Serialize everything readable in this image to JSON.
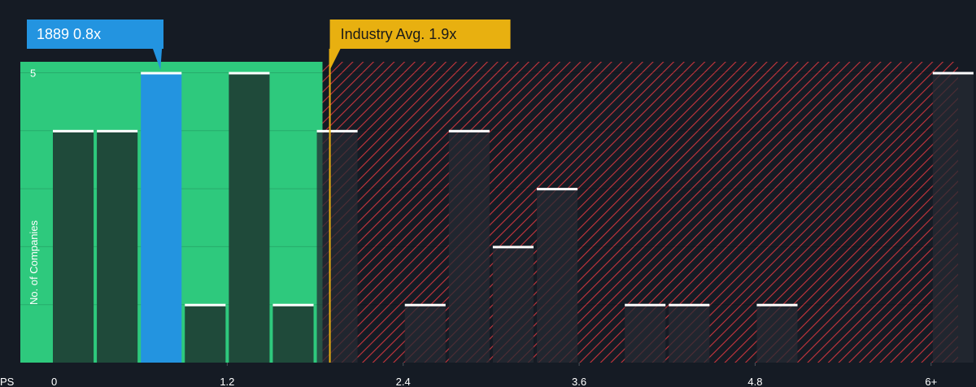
{
  "chart_data": {
    "type": "bar",
    "xlabel": "PS",
    "ylabel": "No. of Companies",
    "x_ticks": [
      "0",
      "1.2",
      "2.4",
      "3.6",
      "4.8",
      "6+"
    ],
    "y_ticks": [
      "5"
    ],
    "xlim": [
      0,
      6.1
    ],
    "ylim": [
      0,
      5.2
    ],
    "bin_width": 0.3,
    "bins": [
      {
        "start": 0.0,
        "count": 4
      },
      {
        "start": 0.3,
        "count": 4
      },
      {
        "start": 0.6,
        "count": 5,
        "highlight": true
      },
      {
        "start": 0.9,
        "count": 1
      },
      {
        "start": 1.2,
        "count": 5
      },
      {
        "start": 1.5,
        "count": 1
      },
      {
        "start": 1.8,
        "count": 4
      },
      {
        "start": 2.4,
        "count": 1
      },
      {
        "start": 2.7,
        "count": 4
      },
      {
        "start": 3.0,
        "count": 2
      },
      {
        "start": 3.3,
        "count": 3
      },
      {
        "start": 3.9,
        "count": 1
      },
      {
        "start": 4.2,
        "count": 1
      },
      {
        "start": 4.8,
        "count": 1
      },
      {
        "start": 6.0,
        "count": 5
      }
    ],
    "company": {
      "label": "1889 0.8x",
      "value": 0.8
    },
    "industry_avg": {
      "label": "Industry Avg. 1.9x",
      "value": 1.9
    },
    "colors": {
      "background": "#151b24",
      "green_zone": "#2ec97d",
      "green_bar": "#1f4a3a",
      "company_bar": "#2394e0",
      "red_hatch": "#c7353d",
      "dark_bar": "#252b33",
      "industry_line": "#e8b010",
      "bar_top": "#ffffff"
    }
  }
}
